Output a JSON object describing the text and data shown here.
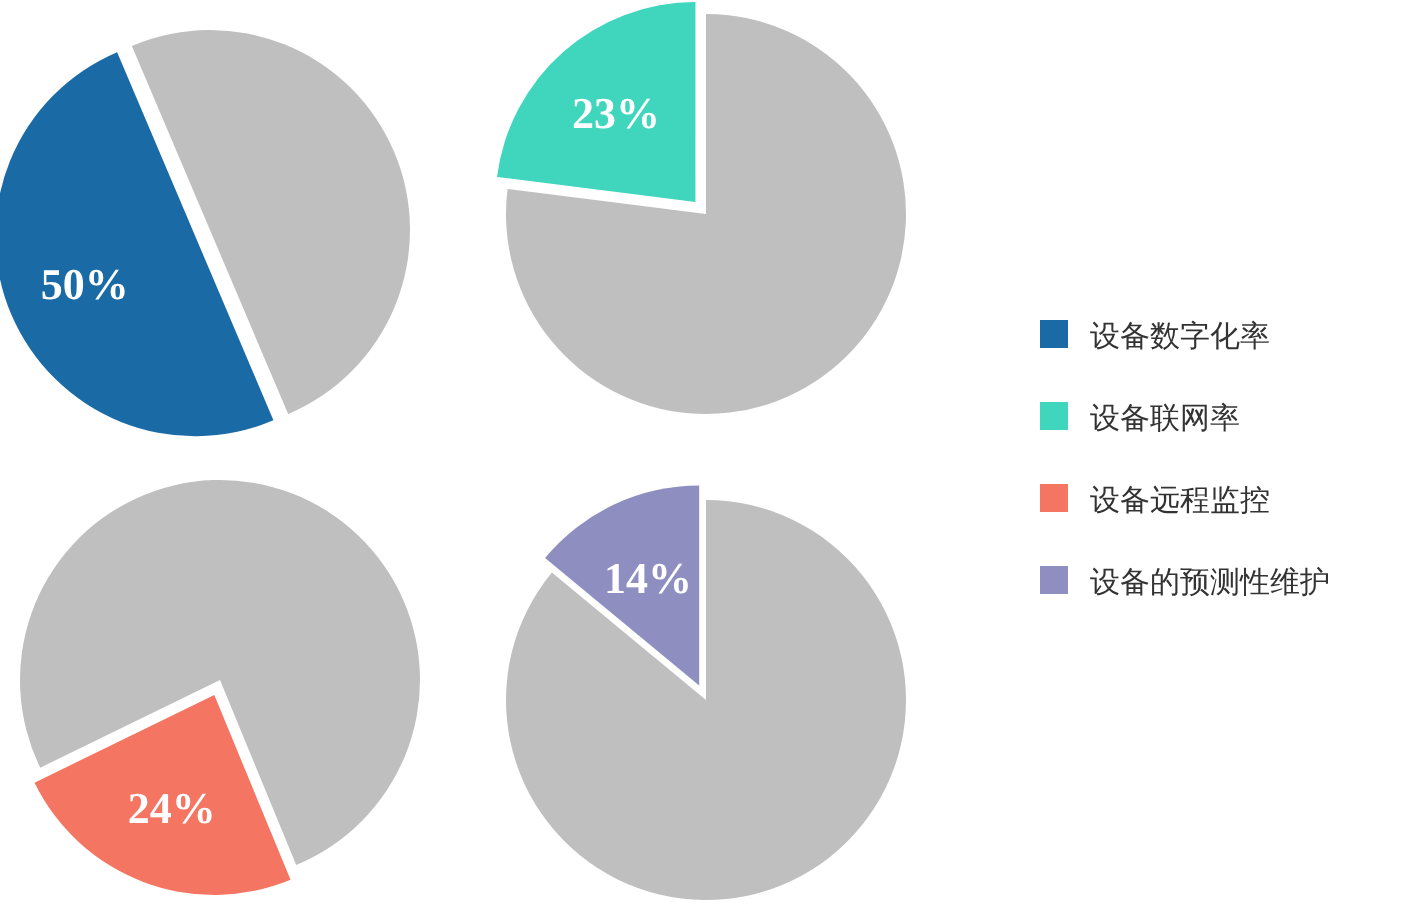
{
  "chart_data": [
    {
      "type": "pie",
      "categories": [
        "设备数字化率",
        null
      ],
      "values": [
        50,
        50
      ],
      "colors": [
        "#1a6aa5",
        "#bfbfbf"
      ],
      "value_labels": [
        "50%",
        null
      ],
      "legend": "right"
    },
    {
      "type": "pie",
      "categories": [
        "设备联网率",
        null
      ],
      "values": [
        23,
        77
      ],
      "colors": [
        "#3fd6bd",
        "#bfbfbf"
      ],
      "value_labels": [
        "23%",
        null
      ],
      "legend": "right"
    },
    {
      "type": "pie",
      "categories": [
        "设备远程监控",
        null
      ],
      "values": [
        24,
        76
      ],
      "colors": [
        "#f47562",
        "#bfbfbf"
      ],
      "value_labels": [
        "24%",
        null
      ],
      "legend": "right"
    },
    {
      "type": "pie",
      "categories": [
        "设备的预测性维护",
        null
      ],
      "values": [
        14,
        86
      ],
      "colors": [
        "#8e8fc0",
        "#bfbfbf"
      ],
      "value_labels": [
        "14%",
        null
      ],
      "legend": "right"
    }
  ]
}
